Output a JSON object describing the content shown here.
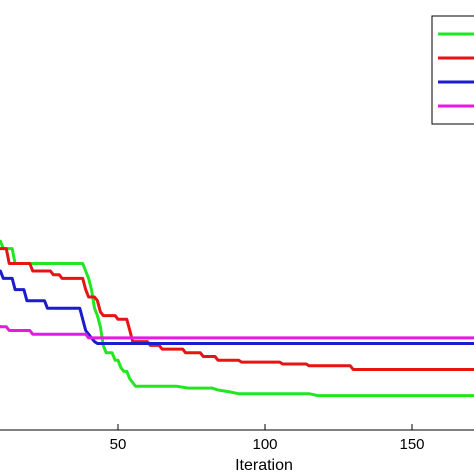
{
  "chart_data": {
    "type": "line",
    "title": "",
    "xlabel": "Iteration",
    "ylabel": "",
    "xlim": [
      -5,
      175
    ],
    "ylim": [
      0,
      1
    ],
    "x_ticks": [
      50,
      100,
      150
    ],
    "x_tick_labels": [
      "50",
      "100",
      "150"
    ],
    "grid": false,
    "legend": {
      "position": "top-right",
      "entries_text_visible": false
    },
    "series": [
      {
        "color": "#22e622",
        "points": [
          [
            -5,
            0.46
          ],
          [
            3,
            0.46
          ],
          [
            4,
            0.43
          ],
          [
            6,
            0.43
          ],
          [
            7,
            0.4
          ],
          [
            10,
            0.4
          ],
          [
            11,
            0.38
          ],
          [
            14,
            0.38
          ],
          [
            15,
            0.34
          ],
          [
            38,
            0.34
          ],
          [
            39,
            0.32
          ],
          [
            40,
            0.3
          ],
          [
            41,
            0.27
          ],
          [
            42,
            0.22
          ],
          [
            43,
            0.2
          ],
          [
            44,
            0.17
          ],
          [
            45,
            0.12
          ],
          [
            46,
            0.1
          ],
          [
            48,
            0.1
          ],
          [
            49,
            0.08
          ],
          [
            50,
            0.08
          ],
          [
            51,
            0.06
          ],
          [
            52,
            0.05
          ],
          [
            53,
            0.05
          ],
          [
            54,
            0.03
          ],
          [
            55,
            0.02
          ],
          [
            56,
            0.01
          ],
          [
            70,
            0.01
          ],
          [
            74,
            0.005
          ],
          [
            82,
            0.005
          ],
          [
            84,
            0.0
          ],
          [
            88,
            -0.005
          ],
          [
            91,
            -0.01
          ],
          [
            115,
            -0.01
          ],
          [
            118,
            -0.015
          ],
          [
            135,
            -0.015
          ],
          [
            175,
            -0.015
          ]
        ]
      },
      {
        "color": "#e61414",
        "points": [
          [
            -5,
            0.61
          ],
          [
            3,
            0.61
          ],
          [
            4,
            0.5
          ],
          [
            5,
            0.42
          ],
          [
            7,
            0.42
          ],
          [
            8,
            0.38
          ],
          [
            12,
            0.38
          ],
          [
            13,
            0.34
          ],
          [
            20,
            0.34
          ],
          [
            21,
            0.32
          ],
          [
            27,
            0.32
          ],
          [
            28,
            0.31
          ],
          [
            30,
            0.31
          ],
          [
            31,
            0.3
          ],
          [
            37,
            0.3
          ],
          [
            38,
            0.3
          ],
          [
            39,
            0.27
          ],
          [
            40,
            0.25
          ],
          [
            42,
            0.25
          ],
          [
            43,
            0.24
          ],
          [
            44,
            0.21
          ],
          [
            45,
            0.2
          ],
          [
            49,
            0.2
          ],
          [
            50,
            0.19
          ],
          [
            53,
            0.19
          ],
          [
            54,
            0.16
          ],
          [
            55,
            0.13
          ],
          [
            60,
            0.13
          ],
          [
            61,
            0.12
          ],
          [
            64,
            0.12
          ],
          [
            65,
            0.11
          ],
          [
            72,
            0.11
          ],
          [
            73,
            0.1
          ],
          [
            78,
            0.1
          ],
          [
            79,
            0.09
          ],
          [
            83,
            0.09
          ],
          [
            84,
            0.08
          ],
          [
            91,
            0.08
          ],
          [
            92,
            0.075
          ],
          [
            105,
            0.075
          ],
          [
            106,
            0.07
          ],
          [
            114,
            0.07
          ],
          [
            115,
            0.065
          ],
          [
            129,
            0.065
          ],
          [
            130,
            0.055
          ],
          [
            150,
            0.055
          ],
          [
            175,
            0.055
          ]
        ]
      },
      {
        "color": "#1c1ccc",
        "points": [
          [
            -5,
            0.43
          ],
          [
            3,
            0.43
          ],
          [
            4,
            0.38
          ],
          [
            7,
            0.38
          ],
          [
            8,
            0.32
          ],
          [
            10,
            0.32
          ],
          [
            11,
            0.3
          ],
          [
            14,
            0.3
          ],
          [
            15,
            0.27
          ],
          [
            18,
            0.27
          ],
          [
            19,
            0.24
          ],
          [
            25,
            0.24
          ],
          [
            26,
            0.22
          ],
          [
            37,
            0.22
          ],
          [
            38,
            0.19
          ],
          [
            39,
            0.16
          ],
          [
            41,
            0.14
          ],
          [
            42,
            0.13
          ],
          [
            43,
            0.125
          ],
          [
            175,
            0.125
          ]
        ]
      },
      {
        "color": "#e619e6",
        "points": [
          [
            -5,
            0.85
          ],
          [
            -2,
            0.75
          ],
          [
            0,
            0.6
          ],
          [
            2,
            0.52
          ],
          [
            3,
            0.45
          ],
          [
            4,
            0.4
          ],
          [
            5,
            0.32
          ],
          [
            6,
            0.24
          ],
          [
            7,
            0.2
          ],
          [
            8,
            0.18
          ],
          [
            10,
            0.17
          ],
          [
            12,
            0.17
          ],
          [
            13,
            0.16
          ],
          [
            20,
            0.16
          ],
          [
            21,
            0.15
          ],
          [
            39,
            0.15
          ],
          [
            40,
            0.14
          ],
          [
            175,
            0.14
          ]
        ]
      }
    ]
  }
}
